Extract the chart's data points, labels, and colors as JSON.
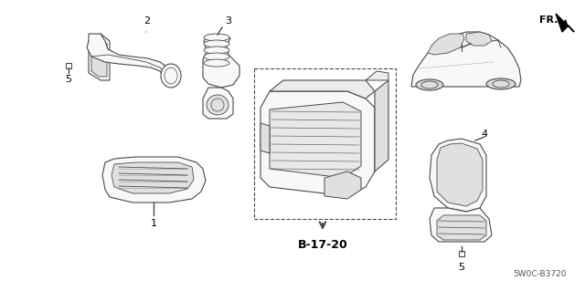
{
  "bg_color": "#ffffff",
  "diagram_code": "5W0C-B3720",
  "ref_code": "B-17-20",
  "fr_label": "FR.",
  "line_color": "#4a4a4a",
  "text_color": "#000000",
  "fill_color": "#f8f8f8",
  "shade_color": "#e0e0e0"
}
